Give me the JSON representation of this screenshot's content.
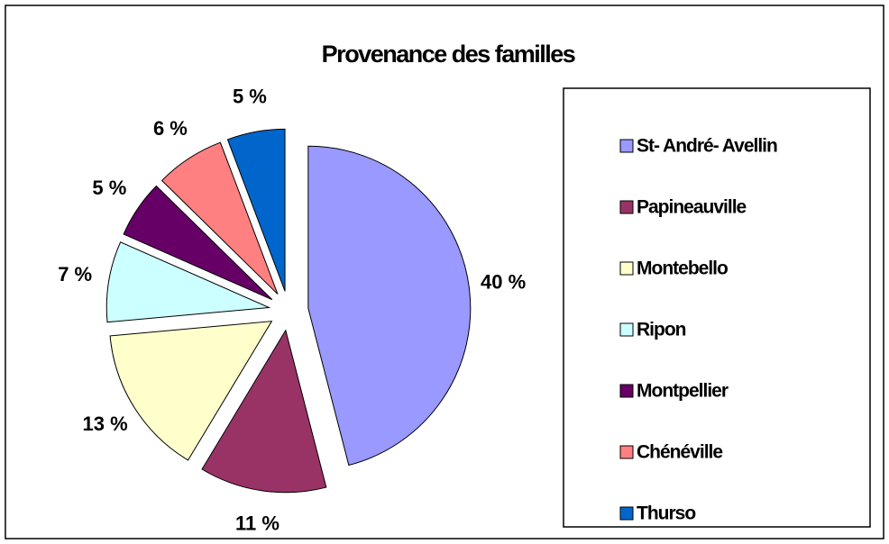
{
  "chart_data": {
    "type": "pie",
    "title": "Provenance des familles",
    "categories": [
      "St- André- Avellin",
      "Papineauville",
      "Montebello",
      "Ripon",
      "Montpellier",
      "Chénéville",
      "Thurso"
    ],
    "values": [
      40,
      11,
      13,
      7,
      5,
      6,
      5
    ],
    "value_labels": [
      "40 %",
      "11 %",
      "13 %",
      "7 %",
      "5 %",
      "6 %",
      "5 %"
    ],
    "colors": [
      "#9999ff",
      "#993366",
      "#ffffcc",
      "#ccffff",
      "#660066",
      "#ff8080",
      "#0066cc"
    ],
    "legend": "right"
  }
}
